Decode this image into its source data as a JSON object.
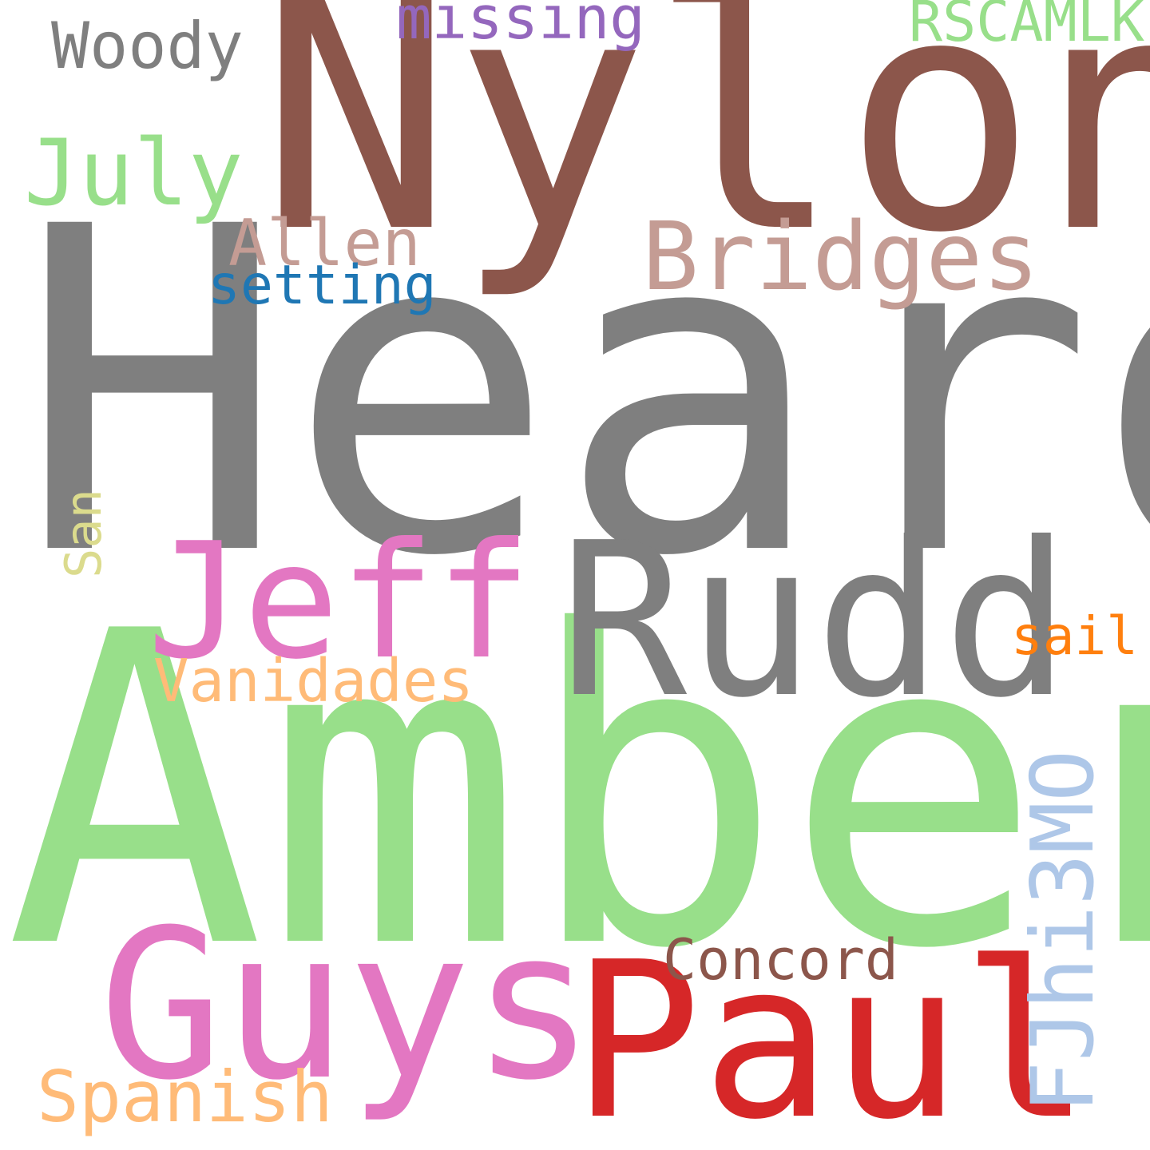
{
  "words": [
    {
      "key": "heard",
      "text": "Heard",
      "color": "#7f7f7f"
    },
    {
      "key": "amber",
      "text": "Amber",
      "color": "#98df8a"
    },
    {
      "key": "nylon",
      "text": "Nylon",
      "color": "#8c564b"
    },
    {
      "key": "rudd",
      "text": "Rudd",
      "color": "#7f7f7f"
    },
    {
      "key": "paul",
      "text": "Paul",
      "color": "#d62728"
    },
    {
      "key": "guys",
      "text": "Guys",
      "color": "#e377c2"
    },
    {
      "key": "jeff",
      "text": "Jeff",
      "color": "#e377c2"
    },
    {
      "key": "bridges",
      "text": "Bridges",
      "color": "#c49c94"
    },
    {
      "key": "july",
      "text": "July",
      "color": "#98df8a"
    },
    {
      "key": "fjhi3mo",
      "text": "FJhi3MO",
      "color": "#aec7e8"
    },
    {
      "key": "spanish",
      "text": "Spanish",
      "color": "#ffbb78"
    },
    {
      "key": "vanidades",
      "text": "Vanidades",
      "color": "#ffbb78"
    },
    {
      "key": "allen",
      "text": "Allen",
      "color": "#c49c94"
    },
    {
      "key": "concord",
      "text": "Concord",
      "color": "#8c564b"
    },
    {
      "key": "woody",
      "text": "Woody",
      "color": "#7f7f7f"
    },
    {
      "key": "rscamlk",
      "text": "RSCAMLK",
      "color": "#98df8a"
    },
    {
      "key": "missing",
      "text": "missing",
      "color": "#9467bd"
    },
    {
      "key": "setting",
      "text": "setting",
      "color": "#1f77b4"
    },
    {
      "key": "sail",
      "text": "sail",
      "color": "#ff7f0e"
    },
    {
      "key": "san",
      "text": "San",
      "color": "#dbdb8d"
    }
  ]
}
